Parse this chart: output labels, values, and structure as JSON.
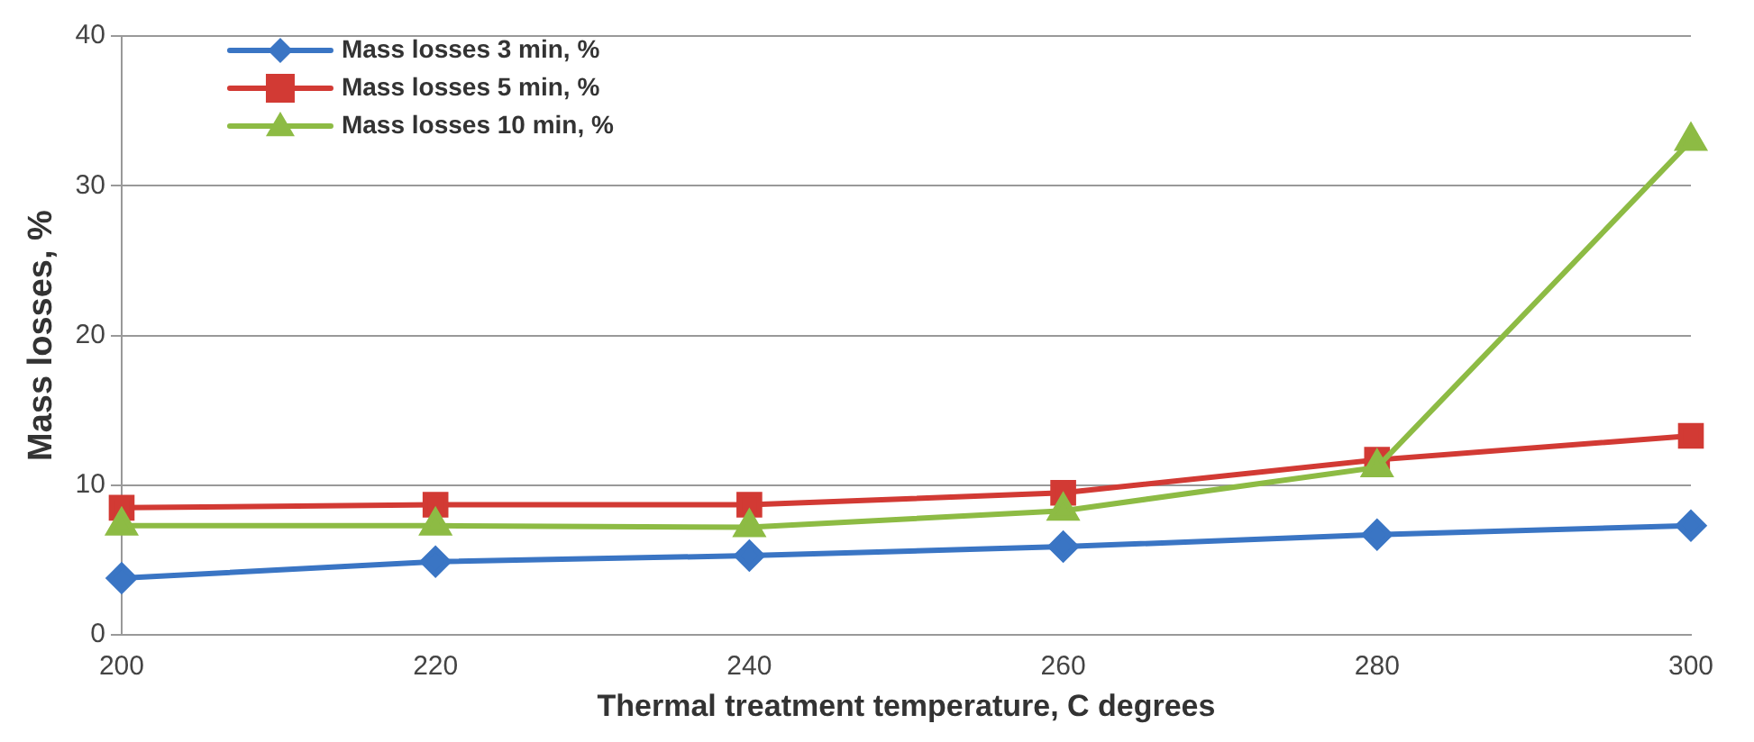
{
  "chart_data": {
    "type": "line",
    "xlabel": "Thermal treatment temperature, C degrees",
    "ylabel": "Mass losses, %",
    "categories": [
      "200",
      "220",
      "240",
      "260",
      "280",
      "300"
    ],
    "series": [
      {
        "name": "Mass losses 3 min, %",
        "color": "#3a75c4",
        "marker": "diamond",
        "values": [
          3.8,
          4.9,
          5.3,
          5.9,
          6.7,
          7.3
        ]
      },
      {
        "name": "Mass losses 5 min, %",
        "color": "#d23a34",
        "marker": "square",
        "values": [
          8.5,
          8.7,
          8.7,
          9.5,
          11.7,
          13.3
        ]
      },
      {
        "name": "Mass losses 10 min, %",
        "color": "#8dbb44",
        "marker": "triangle",
        "values": [
          7.3,
          7.3,
          7.2,
          8.3,
          11.2,
          33
        ]
      }
    ],
    "ylim": [
      0,
      40
    ],
    "yticks": [
      0,
      10,
      20,
      30,
      40
    ],
    "grid": "y",
    "legend": "top left"
  }
}
